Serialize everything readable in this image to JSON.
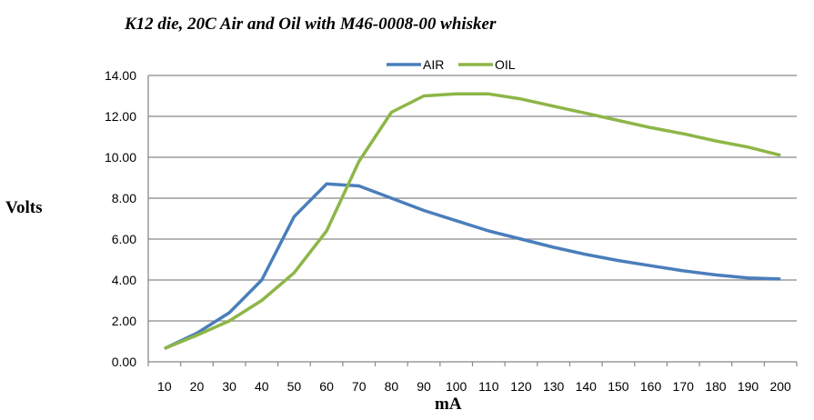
{
  "chart_data": {
    "type": "line",
    "title": "K12 die, 20C Air and Oil with M46-0008-00 whisker",
    "xlabel": "mA",
    "ylabel": "Volts",
    "categories": [
      "10",
      "20",
      "30",
      "40",
      "50",
      "60",
      "70",
      "80",
      "90",
      "100",
      "110",
      "120",
      "130",
      "140",
      "150",
      "160",
      "170",
      "180",
      "190",
      "200"
    ],
    "ylim": [
      0,
      14
    ],
    "yticks": [
      "0.00",
      "2.00",
      "4.00",
      "6.00",
      "8.00",
      "10.00",
      "12.00",
      "14.00"
    ],
    "grid": true,
    "legend": "top",
    "series": [
      {
        "name": "AIR",
        "color": "#4a7ebb",
        "values": [
          0.65,
          1.4,
          2.4,
          4.0,
          7.1,
          8.7,
          8.6,
          8.0,
          7.4,
          6.9,
          6.4,
          6.0,
          5.6,
          5.25,
          4.95,
          4.7,
          4.45,
          4.25,
          4.1,
          4.05
        ]
      },
      {
        "name": "OIL",
        "color": "#8db647",
        "values": [
          0.65,
          1.3,
          2.0,
          3.0,
          4.35,
          6.4,
          9.8,
          12.2,
          13.0,
          13.1,
          13.1,
          12.85,
          12.5,
          12.15,
          11.8,
          11.45,
          11.15,
          10.8,
          10.5,
          10.1
        ]
      }
    ]
  }
}
